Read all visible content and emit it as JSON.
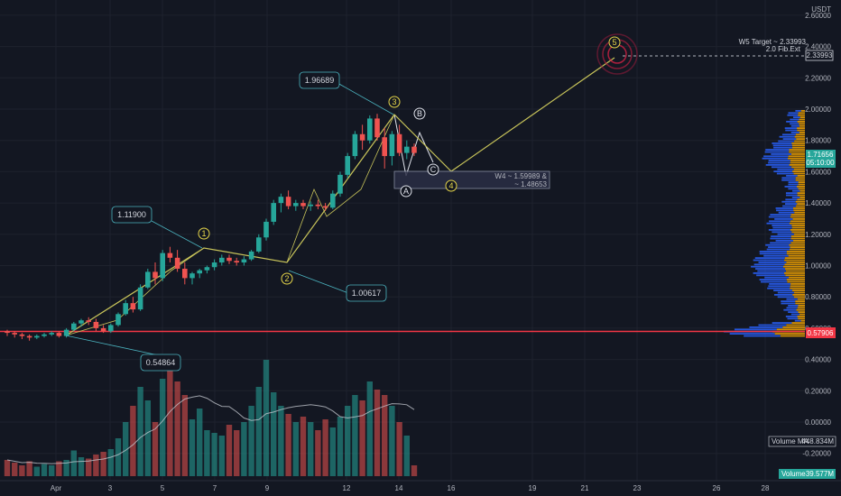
{
  "colors": {
    "background": "#131722",
    "up": "#26a69a",
    "down": "#ef5350",
    "wave": "#c8c45a",
    "callout": "#4bb3bf",
    "support": "#f23645",
    "target": "#c2185b",
    "vp_up": "#2962ff",
    "vp_down": "#f7a600",
    "ma": "#c0c4cc"
  },
  "axis": {
    "currency": "USDT",
    "price_ticks": [
      "2.60000",
      "2.40000",
      "2.20000",
      "2.00000",
      "1.80000",
      "1.60000",
      "1.40000",
      "1.20000",
      "1.00000",
      "0.80000",
      "0.60000",
      "0.40000",
      "0.20000",
      "0.00000",
      "-0.20000"
    ],
    "date_ticks": [
      "Apr",
      "3",
      "5",
      "7",
      "9",
      "12",
      "14",
      "16",
      "19",
      "21",
      "23",
      "26",
      "28"
    ]
  },
  "price_badges": {
    "target": "2.33993",
    "last": "1.71656",
    "countdown": "05:10:00",
    "support": "0.57906",
    "volume_ma_label": "Volume MA",
    "volume_ma_value": "448.834M",
    "volume_label": "Volume",
    "volume_value": "39.577M"
  },
  "callouts": {
    "c1": "1.11900",
    "c2": "1.00617",
    "c3": "1.96689",
    "c0": "0.54864"
  },
  "wave_labels": {
    "w1": "1",
    "w2": "2",
    "w3": "3",
    "w4": "4",
    "w5": "5",
    "wa": "A",
    "wb": "B",
    "wc": "C"
  },
  "annotations": {
    "w5_target": "W5 Target ~ 2.33993",
    "fib_ext": "2.0 Fib.Ext",
    "w4_line1": "W4 ~ 1.59989 &",
    "w4_line2": "~ 1.48653"
  },
  "chart_data": {
    "type": "candlestick",
    "y_range": [
      -0.3,
      2.7
    ],
    "support_level": 0.57906,
    "target_level": 2.33993,
    "wave_points": [
      {
        "label": "0",
        "date": "Apr 1",
        "price": 0.54864
      },
      {
        "label": "1",
        "date": "Apr 6",
        "price": 1.119
      },
      {
        "label": "2",
        "date": "Apr 10",
        "price": 1.00617
      },
      {
        "label": "3",
        "date": "Apr 14",
        "price": 1.96689
      },
      {
        "label": "4",
        "date": "Apr 16",
        "price": 1.59989
      },
      {
        "label": "5",
        "date": "Apr 22",
        "price": 2.33993
      }
    ],
    "candles": [
      [
        0.58,
        0.59,
        0.55,
        0.57
      ],
      [
        0.57,
        0.58,
        0.54,
        0.56
      ],
      [
        0.56,
        0.57,
        0.53,
        0.55
      ],
      [
        0.55,
        0.56,
        0.52,
        0.54
      ],
      [
        0.54,
        0.56,
        0.53,
        0.55
      ],
      [
        0.55,
        0.57,
        0.54,
        0.56
      ],
      [
        0.56,
        0.58,
        0.55,
        0.57
      ],
      [
        0.57,
        0.58,
        0.54,
        0.55
      ],
      [
        0.55,
        0.6,
        0.54,
        0.59
      ],
      [
        0.59,
        0.64,
        0.58,
        0.63
      ],
      [
        0.63,
        0.66,
        0.61,
        0.65
      ],
      [
        0.65,
        0.67,
        0.62,
        0.64
      ],
      [
        0.64,
        0.66,
        0.58,
        0.6
      ],
      [
        0.6,
        0.62,
        0.57,
        0.58
      ],
      [
        0.58,
        0.63,
        0.57,
        0.62
      ],
      [
        0.62,
        0.7,
        0.61,
        0.69
      ],
      [
        0.69,
        0.78,
        0.68,
        0.76
      ],
      [
        0.76,
        0.8,
        0.7,
        0.72
      ],
      [
        0.72,
        0.88,
        0.71,
        0.86
      ],
      [
        0.86,
        0.98,
        0.85,
        0.96
      ],
      [
        0.96,
        1.02,
        0.88,
        0.92
      ],
      [
        0.92,
        1.1,
        0.9,
        1.08
      ],
      [
        1.08,
        1.12,
        1.02,
        1.05
      ],
      [
        1.05,
        1.1,
        0.96,
        0.98
      ],
      [
        0.98,
        1.02,
        0.88,
        0.92
      ],
      [
        0.92,
        0.96,
        0.88,
        0.95
      ],
      [
        0.95,
        0.98,
        0.92,
        0.97
      ],
      [
        0.97,
        1.0,
        0.95,
        0.99
      ],
      [
        0.99,
        1.04,
        0.97,
        1.02
      ],
      [
        1.02,
        1.07,
        1.0,
        1.05
      ],
      [
        1.05,
        1.07,
        1.01,
        1.03
      ],
      [
        1.03,
        1.05,
        1.0,
        1.02
      ],
      [
        1.02,
        1.06,
        1.0,
        1.04
      ],
      [
        1.04,
        1.1,
        1.03,
        1.09
      ],
      [
        1.09,
        1.2,
        1.08,
        1.18
      ],
      [
        1.18,
        1.3,
        1.16,
        1.28
      ],
      [
        1.28,
        1.42,
        1.26,
        1.4
      ],
      [
        1.4,
        1.46,
        1.34,
        1.44
      ],
      [
        1.44,
        1.48,
        1.36,
        1.38
      ],
      [
        1.38,
        1.42,
        1.35,
        1.4
      ],
      [
        1.4,
        1.42,
        1.36,
        1.38
      ],
      [
        1.38,
        1.41,
        1.35,
        1.39
      ],
      [
        1.39,
        1.42,
        1.36,
        1.38
      ],
      [
        1.38,
        1.4,
        1.35,
        1.37
      ],
      [
        1.37,
        1.48,
        1.36,
        1.46
      ],
      [
        1.46,
        1.6,
        1.44,
        1.58
      ],
      [
        1.58,
        1.72,
        1.56,
        1.7
      ],
      [
        1.7,
        1.86,
        1.68,
        1.84
      ],
      [
        1.84,
        1.9,
        1.74,
        1.8
      ],
      [
        1.8,
        1.96,
        1.78,
        1.94
      ],
      [
        1.94,
        1.97,
        1.8,
        1.82
      ],
      [
        1.82,
        1.88,
        1.62,
        1.7
      ],
      [
        1.7,
        1.86,
        1.64,
        1.84
      ],
      [
        1.84,
        1.9,
        1.7,
        1.72
      ],
      [
        1.72,
        1.8,
        1.68,
        1.76
      ],
      [
        1.76,
        1.78,
        1.7,
        1.72
      ]
    ],
    "volumes": [
      60,
      50,
      40,
      55,
      35,
      45,
      40,
      55,
      60,
      95,
      70,
      65,
      80,
      90,
      100,
      140,
      200,
      260,
      330,
      280,
      200,
      360,
      430,
      350,
      300,
      210,
      250,
      170,
      160,
      150,
      190,
      170,
      200,
      260,
      330,
      430,
      310,
      260,
      230,
      200,
      220,
      200,
      170,
      210,
      180,
      220,
      260,
      300,
      280,
      350,
      320,
      300,
      260,
      200,
      150,
      40
    ]
  }
}
